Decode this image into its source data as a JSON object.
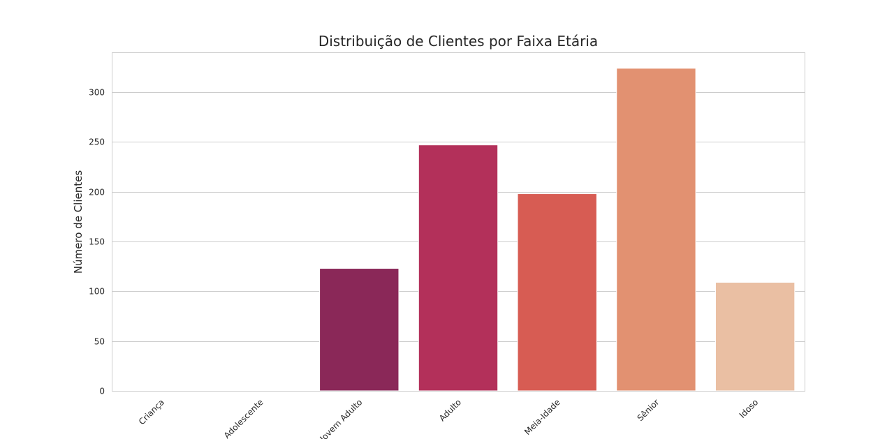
{
  "chart_data": {
    "type": "bar",
    "title": "Distribuição de Clientes por Faixa Etária",
    "xlabel": "",
    "ylabel": "Número de Clientes",
    "categories": [
      "Criança",
      "Adolescente",
      "Jovem Adulto",
      "Adulto",
      "Meia-Idade",
      "Sênior",
      "Idoso"
    ],
    "values": [
      0,
      0,
      123,
      247,
      198,
      324,
      109
    ],
    "colors": [
      "#35193e",
      "#5e1f52",
      "#8a2858",
      "#b3305a",
      "#d75c53",
      "#e29171",
      "#eabfa3"
    ],
    "ylim": [
      0,
      340
    ],
    "yticks": [
      0,
      50,
      100,
      150,
      200,
      250,
      300
    ],
    "grid": true
  }
}
